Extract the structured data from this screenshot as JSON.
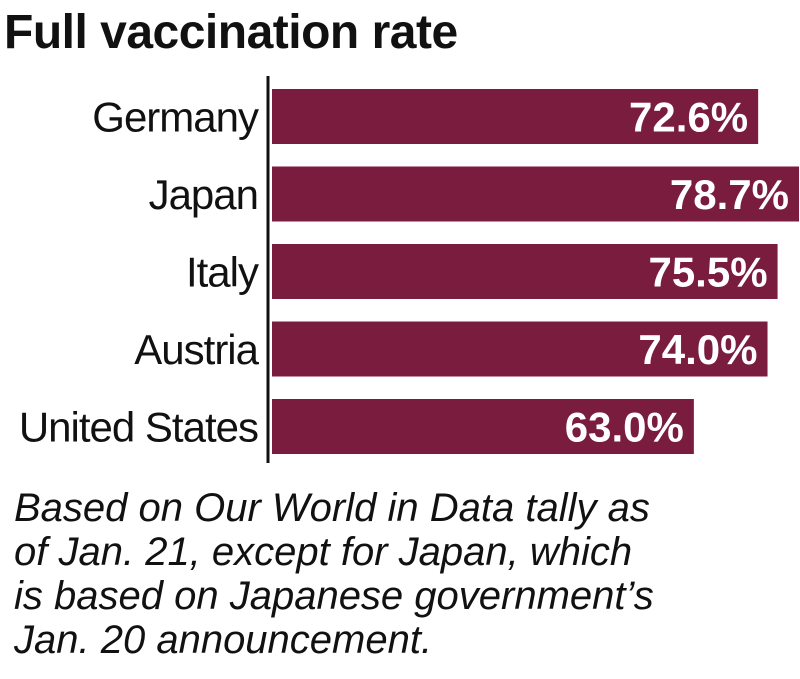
{
  "chart_data": {
    "type": "bar",
    "orientation": "horizontal",
    "title": "Full vaccination rate",
    "categories": [
      "Germany",
      "Japan",
      "Italy",
      "Austria",
      "United States"
    ],
    "values": [
      72.6,
      78.7,
      75.5,
      74.0,
      63.0
    ],
    "value_labels": [
      "72.6%",
      "78.7%",
      "75.5%",
      "74.0%",
      "63.0%"
    ],
    "unit": "%",
    "xlim": [
      0,
      78.7
    ],
    "grid": false,
    "legend": "none",
    "bar_color": "#7a1c3e",
    "note_lines": [
      "Based on Our World in Data tally as",
      "of Jan. 21, except for Japan, which",
      "is based on Japanese government’s",
      "Jan. 20 announcement."
    ]
  }
}
